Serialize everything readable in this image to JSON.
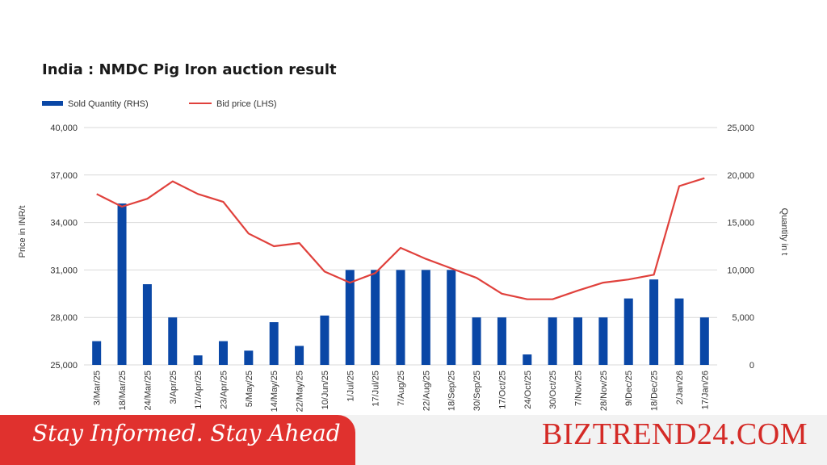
{
  "chart_data": {
    "type": "bar+line",
    "title": "India : NMDC Pig Iron auction result",
    "categories": [
      "3/Mar/25",
      "18/Mar/25",
      "24/Mar/25",
      "3/Apr/25",
      "17/Apr/25",
      "23/Apr/25",
      "5/May/25",
      "14/May/25",
      "22/May/25",
      "10/Jun/25",
      "1/Jul/25",
      "17/Jul/25",
      "7/Aug/25",
      "22/Aug/25",
      "18/Sep/25",
      "30/Sep/25",
      "17/Oct/25",
      "24/Oct/25",
      "30/Oct/25",
      "7/Nov/25",
      "28/Nov/25",
      "9/Dec/25",
      "18/Dec/25",
      "2/Jan/26",
      "17/Jan/26"
    ],
    "series": [
      {
        "name": "Sold Quantity (RHS)",
        "type": "bar",
        "axis": "right",
        "color": "#0a47a6",
        "values": [
          2500,
          17000,
          8500,
          5000,
          1000,
          2500,
          1500,
          4500,
          2000,
          5200,
          10000,
          10000,
          10000,
          10000,
          10000,
          5000,
          5000,
          1100,
          5000,
          5000,
          5000,
          7000,
          9000,
          7000,
          5000
        ]
      },
      {
        "name": "Bid price (LHS)",
        "type": "line",
        "axis": "left",
        "color": "#e0413c",
        "values": [
          35800,
          35000,
          35500,
          36600,
          35800,
          35300,
          33300,
          32500,
          32700,
          30900,
          30200,
          30800,
          32400,
          31700,
          31100,
          30500,
          29500,
          29150,
          29150,
          29700,
          30200,
          30400,
          30700,
          36300,
          36800
        ]
      }
    ],
    "ylabel": "Price in INR/t",
    "ylim": [
      25000,
      40000
    ],
    "yticks": [
      "25,000",
      "28,000",
      "31,000",
      "34,000",
      "37,000",
      "40,000"
    ],
    "y2label": "Quantity in t",
    "y2lim": [
      0,
      25000
    ],
    "y2ticks": [
      "0",
      "5,000",
      "10,000",
      "15,000",
      "20,000",
      "25,000"
    ],
    "grid": true,
    "legend_position": "top-left"
  },
  "footer": {
    "tagline": "Stay Informed. Stay Ahead",
    "brand": "BIZTREND24.COM"
  }
}
